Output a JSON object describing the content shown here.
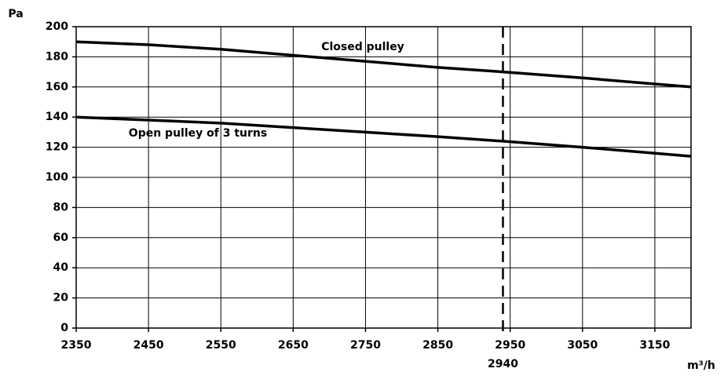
{
  "chart_data": {
    "type": "line",
    "y_label": "Pa",
    "x_label": "m³/h",
    "x": [
      2350,
      2450,
      2550,
      2650,
      2750,
      2850,
      2940,
      3050,
      3150,
      3200
    ],
    "series": [
      {
        "name": "Closed pulley",
        "color": "#000000",
        "values": [
          190,
          188,
          185,
          181,
          177,
          173,
          170,
          166,
          162,
          160
        ]
      },
      {
        "name": "Open pulley of 3 turns",
        "color": "#000000",
        "values": [
          140,
          138,
          136,
          133,
          130,
          127,
          124,
          120,
          116,
          114
        ]
      }
    ],
    "xlim": [
      2350,
      3200
    ],
    "xticks": [
      2350,
      2450,
      2550,
      2650,
      2750,
      2850,
      2950,
      3050,
      3150
    ],
    "ylim": [
      0,
      200
    ],
    "yticks": [
      0,
      20,
      40,
      60,
      80,
      100,
      120,
      140,
      160,
      180,
      200
    ],
    "grid": true,
    "reference_line": {
      "x": 2940,
      "label": "2940"
    }
  }
}
